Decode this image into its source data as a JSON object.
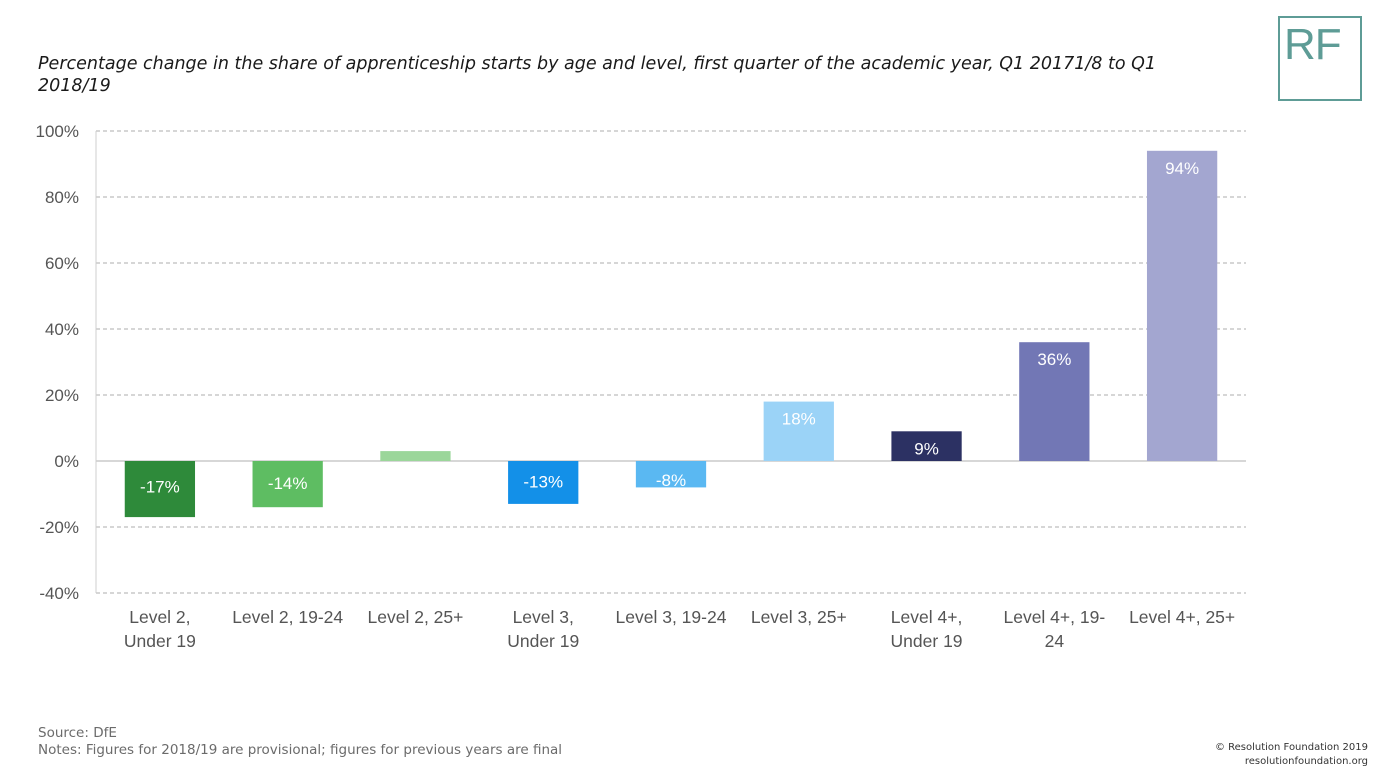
{
  "title": "Percentage change in the share of apprenticeship starts by age and level, first quarter of the academic year, Q1 20171/8 to Q1 2018/19",
  "logo": {
    "text": "RF",
    "color": "#5e9c96"
  },
  "footer": {
    "source": "Source: DfE",
    "notes": "Notes: Figures for 2018/19 are provisional; figures for previous years are final",
    "copyright": "© Resolution Foundation 2019",
    "site": "resolutionfoundation.org"
  },
  "chart_data": {
    "type": "bar",
    "title": "",
    "xlabel": "",
    "ylabel": "",
    "ylim": [
      -40,
      100
    ],
    "yticks": [
      -40,
      -20,
      0,
      20,
      40,
      60,
      80,
      100
    ],
    "ytick_labels": [
      "-40%",
      "-20%",
      "0%",
      "20%",
      "40%",
      "60%",
      "80%",
      "100%"
    ],
    "grid": true,
    "grid_style": "dashed",
    "categories": [
      [
        "Level 2,",
        "Under 19"
      ],
      [
        "Level 2, 19-24"
      ],
      [
        "Level 2, 25+"
      ],
      [
        "Level 3,",
        "Under 19"
      ],
      [
        "Level 3, 19-24"
      ],
      [
        "Level 3, 25+"
      ],
      [
        "Level 4+,",
        "Under 19"
      ],
      [
        "Level 4+, 19-",
        "24"
      ],
      [
        "Level 4+, 25+"
      ]
    ],
    "values": [
      -17,
      -14,
      3,
      -13,
      -8,
      18,
      9,
      36,
      94
    ],
    "data_labels": [
      "-17%",
      "-14%",
      "",
      "-13%",
      "-8%",
      "18%",
      "9%",
      "36%",
      "94%"
    ],
    "colors": [
      "#2e8a3a",
      "#5ebd62",
      "#9bd69a",
      "#1390e8",
      "#5ab8f2",
      "#9bd3f7",
      "#2c3163",
      "#7277b5",
      "#a3a6d0"
    ]
  }
}
